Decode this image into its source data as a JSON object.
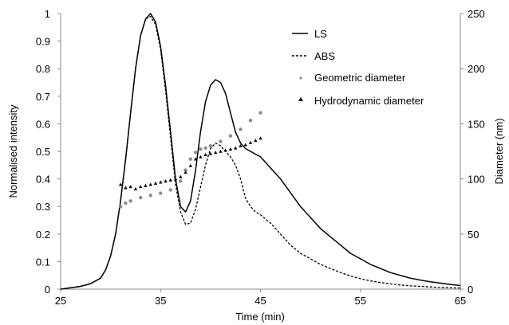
{
  "chart_data": {
    "type": "line",
    "xlabel": "Time (min)",
    "ylabel_left": "Normalised intensity",
    "ylabel_right": "Diameter (nm)",
    "xlim": [
      25,
      65
    ],
    "ylim_left": [
      0,
      1
    ],
    "ylim_right": [
      0,
      250
    ],
    "x_ticks": [
      "25",
      "35",
      "45",
      "55",
      "65"
    ],
    "y_left_ticks": [
      "0",
      "0.1",
      "0.2",
      "0.3",
      "0.4",
      "0.5",
      "0.6",
      "0.7",
      "0.8",
      "0.9",
      "1"
    ],
    "y_right_ticks": [
      "0",
      "50",
      "100",
      "150",
      "200",
      "250"
    ],
    "grid": false,
    "legend_position": "top-right",
    "colors": {
      "LS": "#000000",
      "ABS": "#000000",
      "geometric": "#8c8c8c",
      "hydrodynamic": "#000000"
    },
    "series": [
      {
        "name": "LS",
        "axis": "left",
        "style": "solid",
        "x": [
          25,
          27,
          28,
          29,
          29.5,
          30,
          30.5,
          31,
          31.5,
          32,
          32.5,
          33,
          33.5,
          34,
          34.5,
          35,
          35.5,
          36,
          36.5,
          37,
          37.5,
          38,
          38.5,
          39,
          39.5,
          40,
          40.5,
          41,
          41.5,
          42,
          42.5,
          43,
          43.5,
          44,
          44.5,
          45,
          46,
          47,
          48,
          49,
          50,
          51,
          52,
          53,
          54,
          55,
          56,
          57,
          58,
          59,
          60,
          61,
          62,
          63,
          64,
          65
        ],
        "y": [
          0.0,
          0.01,
          0.02,
          0.04,
          0.07,
          0.12,
          0.2,
          0.32,
          0.47,
          0.64,
          0.8,
          0.92,
          0.98,
          1.0,
          0.97,
          0.88,
          0.74,
          0.57,
          0.4,
          0.3,
          0.28,
          0.32,
          0.43,
          0.57,
          0.68,
          0.74,
          0.76,
          0.75,
          0.71,
          0.64,
          0.57,
          0.53,
          0.51,
          0.5,
          0.49,
          0.48,
          0.44,
          0.4,
          0.35,
          0.3,
          0.26,
          0.22,
          0.19,
          0.16,
          0.13,
          0.11,
          0.09,
          0.075,
          0.06,
          0.05,
          0.04,
          0.033,
          0.027,
          0.022,
          0.017,
          0.013
        ]
      },
      {
        "name": "ABS",
        "axis": "left",
        "style": "dashed",
        "x": [
          25,
          27,
          28,
          29,
          29.5,
          30,
          30.5,
          31,
          31.5,
          32,
          32.5,
          33,
          33.5,
          34,
          34.5,
          35,
          35.5,
          36,
          36.5,
          37,
          37.5,
          38,
          38.5,
          39,
          39.5,
          40,
          40.5,
          41,
          41.5,
          42,
          42.5,
          43,
          43.5,
          44,
          44.5,
          45,
          46,
          47,
          48,
          49,
          50,
          51,
          52,
          53,
          54,
          55,
          56,
          57,
          58,
          59,
          60,
          61,
          62,
          63,
          64,
          65
        ],
        "y": [
          0.0,
          0.01,
          0.02,
          0.04,
          0.07,
          0.12,
          0.2,
          0.32,
          0.47,
          0.64,
          0.8,
          0.92,
          0.98,
          0.99,
          0.96,
          0.87,
          0.72,
          0.55,
          0.38,
          0.28,
          0.235,
          0.24,
          0.29,
          0.37,
          0.45,
          0.51,
          0.53,
          0.52,
          0.5,
          0.48,
          0.45,
          0.4,
          0.33,
          0.3,
          0.28,
          0.27,
          0.24,
          0.2,
          0.16,
          0.13,
          0.11,
          0.09,
          0.075,
          0.06,
          0.048,
          0.038,
          0.03,
          0.024,
          0.019,
          0.015,
          0.012,
          0.01,
          0.008,
          0.006,
          0.005,
          0.004
        ]
      },
      {
        "name": "Geometric diameter",
        "axis": "right",
        "style": "markers-grey",
        "x": [
          31,
          31.5,
          32,
          33,
          34,
          35,
          36,
          37,
          37.5,
          38,
          38.5,
          39,
          39.5,
          40,
          41,
          42,
          43,
          44,
          45
        ],
        "y": [
          75,
          78,
          80,
          83,
          85,
          87,
          90,
          98,
          108,
          118,
          124,
          127,
          128,
          130,
          134,
          139,
          145,
          153,
          160
        ]
      },
      {
        "name": "Hydrodynamic diameter",
        "axis": "right",
        "style": "markers-black",
        "x": [
          31,
          31.5,
          32,
          32.5,
          33,
          33.5,
          34,
          34.5,
          35,
          35.5,
          36,
          36.5,
          37,
          37.5,
          38,
          38.5,
          39,
          39.5,
          40,
          40.5,
          41,
          41.5,
          42,
          42.5,
          43,
          43.5,
          44,
          44.5,
          45
        ],
        "y": [
          95,
          92,
          93,
          91,
          93,
          94,
          95,
          96,
          97,
          98,
          99,
          100,
          102,
          106,
          112,
          118,
          120,
          122,
          123,
          124,
          125,
          126,
          127,
          128,
          130,
          131,
          133,
          135,
          137
        ]
      }
    ]
  }
}
